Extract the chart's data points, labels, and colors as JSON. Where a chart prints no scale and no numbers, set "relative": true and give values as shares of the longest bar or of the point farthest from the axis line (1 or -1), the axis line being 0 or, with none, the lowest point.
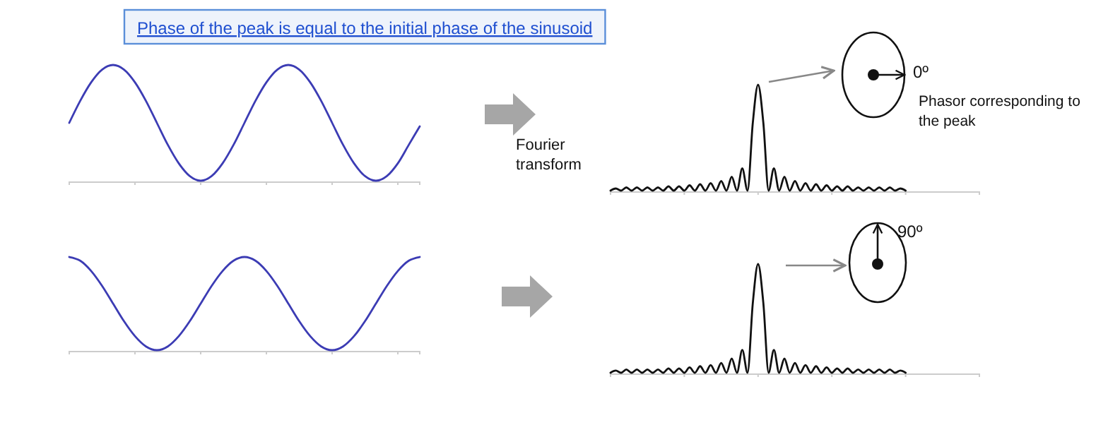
{
  "chart_data": [
    {
      "type": "line",
      "title": "Phase of the peak is equal to the initial phase of the sinusoid",
      "relative": true,
      "annotations": [
        "Fourier transform"
      ],
      "categories": [
        null,
        null,
        null,
        null,
        null,
        null,
        null,
        null,
        null,
        null,
        null,
        null,
        null,
        null,
        null,
        null,
        null,
        null,
        null,
        null,
        null,
        null,
        null,
        null,
        null,
        null,
        null,
        null,
        null,
        null,
        null,
        null,
        null
      ],
      "series": [
        {
          "color": "#3c3cb4",
          "values": [
            0.5,
            0.69,
            0.85,
            0.96,
            1,
            0.96,
            0.85,
            0.69,
            0.5,
            0.31,
            0.15,
            0.04,
            0,
            0.04,
            0.15,
            0.31,
            0.5,
            0.69,
            0.85,
            0.96,
            1,
            0.96,
            0.85,
            0.69,
            0.5,
            0.31,
            0.15,
            0.04,
            0,
            0.04,
            0.15,
            0.31,
            0.47
          ]
        }
      ]
    },
    {
      "type": "line",
      "relative": true,
      "annotations": [
        "0º",
        "Phasor corresponding to the peak"
      ],
      "categories": [
        null,
        null,
        null,
        null,
        null,
        null,
        null,
        null,
        null,
        null,
        null,
        null,
        null,
        null,
        null,
        null,
        null,
        null,
        null,
        null,
        null,
        null,
        null,
        null,
        null,
        null,
        null,
        null,
        null,
        null,
        null,
        null,
        null,
        null,
        null,
        null,
        null,
        null,
        null,
        null,
        null,
        null,
        null,
        null,
        null,
        null,
        null,
        null,
        null,
        null,
        null,
        null,
        null,
        null,
        null,
        null,
        null,
        null,
        null,
        null,
        null,
        null,
        null,
        null,
        null,
        null,
        null,
        null,
        null,
        null,
        null
      ],
      "series": [
        {
          "color": "#111111",
          "values": [
            0,
            0.02,
            0,
            0.03,
            0,
            0.03,
            0,
            0.03,
            0,
            0.03,
            0,
            0.04,
            0,
            0.04,
            0,
            0.05,
            0,
            0.06,
            0,
            0.07,
            0,
            0.09,
            0,
            0.13,
            0,
            0.21,
            0,
            0.64,
            1,
            0.64,
            0,
            0.21,
            0,
            0.13,
            0,
            0.09,
            0,
            0.07,
            0,
            0.06,
            0,
            0.05,
            0,
            0.04,
            0,
            0.04,
            0,
            0.03,
            0,
            0.03,
            0,
            0.03,
            0,
            0.03,
            0,
            0.02,
            0,
            null,
            null,
            null,
            null,
            null,
            null,
            null,
            null,
            null,
            null,
            null,
            null,
            null,
            null
          ]
        }
      ]
    },
    {
      "type": "line",
      "relative": true,
      "categories": [
        null,
        null,
        null,
        null,
        null,
        null,
        null,
        null,
        null,
        null,
        null,
        null,
        null,
        null,
        null,
        null,
        null,
        null,
        null,
        null,
        null,
        null,
        null,
        null,
        null,
        null,
        null,
        null,
        null,
        null,
        null,
        null,
        null
      ],
      "series": [
        {
          "color": "#3c3cb4",
          "values": [
            1,
            0.96,
            0.85,
            0.69,
            0.5,
            0.31,
            0.15,
            0.04,
            0,
            0.04,
            0.15,
            0.31,
            0.5,
            0.69,
            0.85,
            0.96,
            1,
            0.96,
            0.85,
            0.69,
            0.5,
            0.31,
            0.15,
            0.04,
            0,
            0.04,
            0.15,
            0.31,
            0.5,
            0.69,
            0.85,
            0.96,
            1
          ]
        }
      ]
    },
    {
      "type": "line",
      "relative": true,
      "annotations": [
        "90º"
      ],
      "categories": [
        null,
        null,
        null,
        null,
        null,
        null,
        null,
        null,
        null,
        null,
        null,
        null,
        null,
        null,
        null,
        null,
        null,
        null,
        null,
        null,
        null,
        null,
        null,
        null,
        null,
        null,
        null,
        null,
        null,
        null,
        null,
        null,
        null,
        null,
        null,
        null,
        null,
        null,
        null,
        null,
        null,
        null,
        null,
        null,
        null,
        null,
        null,
        null,
        null,
        null,
        null,
        null,
        null,
        null,
        null,
        null,
        null,
        null,
        null,
        null,
        null,
        null,
        null,
        null,
        null,
        null,
        null,
        null,
        null,
        null,
        null
      ],
      "series": [
        {
          "color": "#111111",
          "values": [
            0,
            0.02,
            0,
            0.03,
            0,
            0.03,
            0,
            0.03,
            0,
            0.03,
            0,
            0.04,
            0,
            0.04,
            0,
            0.05,
            0,
            0.06,
            0,
            0.07,
            0,
            0.09,
            0,
            0.13,
            0,
            0.21,
            0,
            0.64,
            1,
            0.64,
            0,
            0.21,
            0,
            0.13,
            0,
            0.09,
            0,
            0.07,
            0,
            0.06,
            0,
            0.05,
            0,
            0.04,
            0,
            0.04,
            0,
            0.03,
            0,
            0.03,
            0,
            0.03,
            0,
            0.03,
            0,
            0.02,
            0,
            null,
            null,
            null,
            null,
            null,
            null,
            null,
            null,
            null,
            null,
            null,
            null,
            null,
            null
          ]
        }
      ]
    }
  ]
}
